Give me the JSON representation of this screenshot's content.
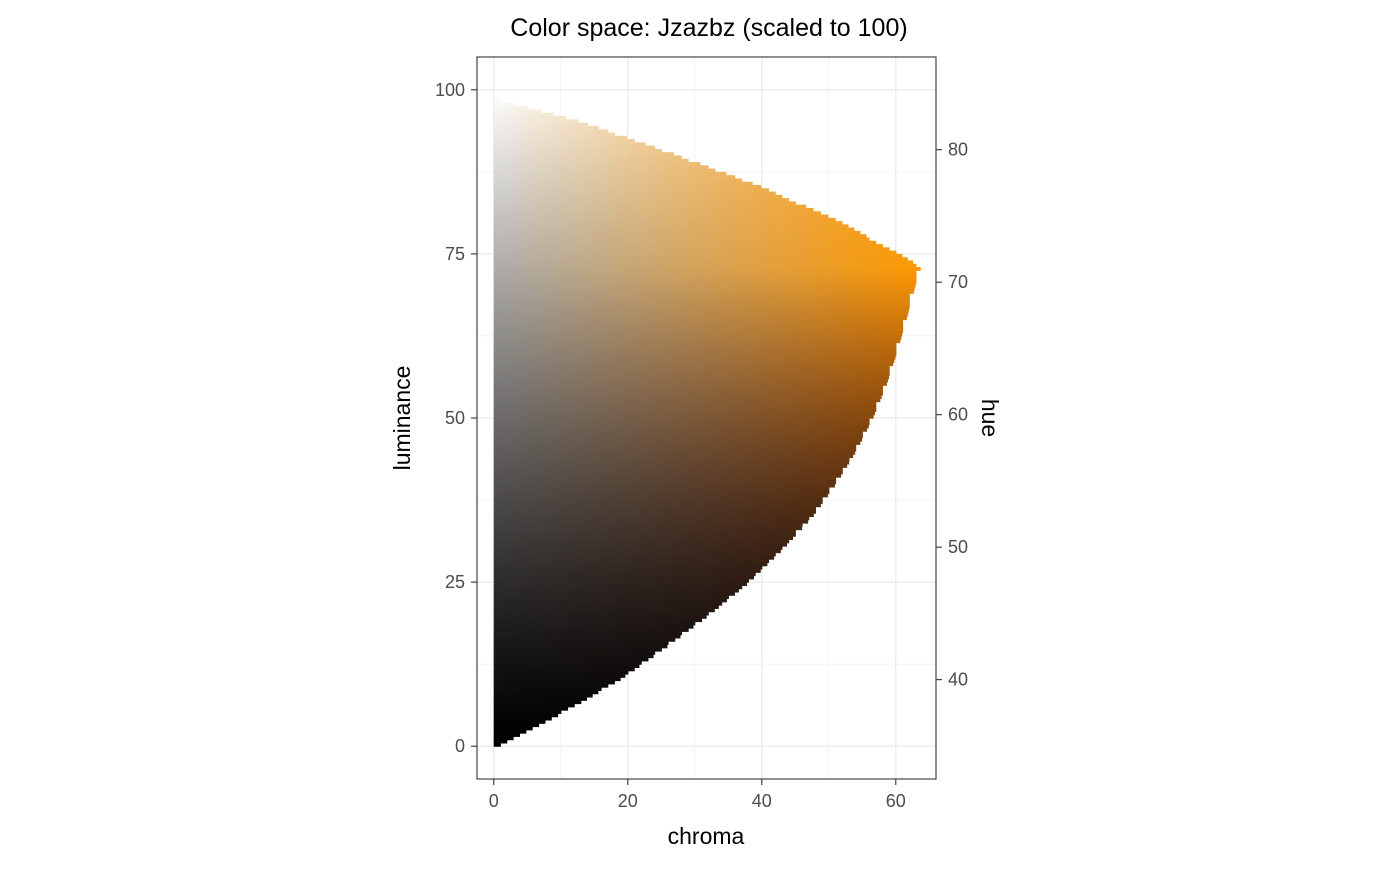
{
  "chart_data": {
    "type": "heatmap",
    "title": "Color space: Jzazbz (scaled to 100)",
    "xlabel": "chroma",
    "ylabel": "luminance",
    "y2label": "hue",
    "xlim": [
      -2.5,
      66
    ],
    "ylim": [
      -5,
      105
    ],
    "y2lim": [
      32.5,
      87
    ],
    "x_ticks": [
      0,
      20,
      40,
      60
    ],
    "y_ticks": [
      0,
      25,
      50,
      75,
      100
    ],
    "y2_ticks": [
      40,
      50,
      60,
      70,
      80
    ],
    "grid": true,
    "panel_border": true,
    "gamut_boundary": [
      {
        "luminance": 0,
        "chroma": 0
      },
      {
        "luminance": 5,
        "chroma": 9.5
      },
      {
        "luminance": 10,
        "chroma": 18
      },
      {
        "luminance": 15,
        "chroma": 25
      },
      {
        "luminance": 20,
        "chroma": 31.5
      },
      {
        "luminance": 25,
        "chroma": 37.5
      },
      {
        "luminance": 30,
        "chroma": 42.5
      },
      {
        "luminance": 35,
        "chroma": 47
      },
      {
        "luminance": 40,
        "chroma": 50.5
      },
      {
        "luminance": 45,
        "chroma": 53.5
      },
      {
        "luminance": 50,
        "chroma": 56
      },
      {
        "luminance": 55,
        "chroma": 58
      },
      {
        "luminance": 60,
        "chroma": 59.6
      },
      {
        "luminance": 65,
        "chroma": 61
      },
      {
        "luminance": 70,
        "chroma": 62.3
      },
      {
        "luminance": 73,
        "chroma": 63.2
      },
      {
        "luminance": 75,
        "chroma": 60
      },
      {
        "luminance": 80,
        "chroma": 51
      },
      {
        "luminance": 85,
        "chroma": 40
      },
      {
        "luminance": 90,
        "chroma": 27
      },
      {
        "luminance": 95,
        "chroma": 13
      },
      {
        "luminance": 98.5,
        "chroma": 0
      }
    ],
    "color_stops": {
      "neutral_black": "#000000",
      "neutral_white": "#ffffff",
      "max_chroma_color": "#ff9900",
      "dark_chroma_color": "#5a0f00"
    }
  }
}
